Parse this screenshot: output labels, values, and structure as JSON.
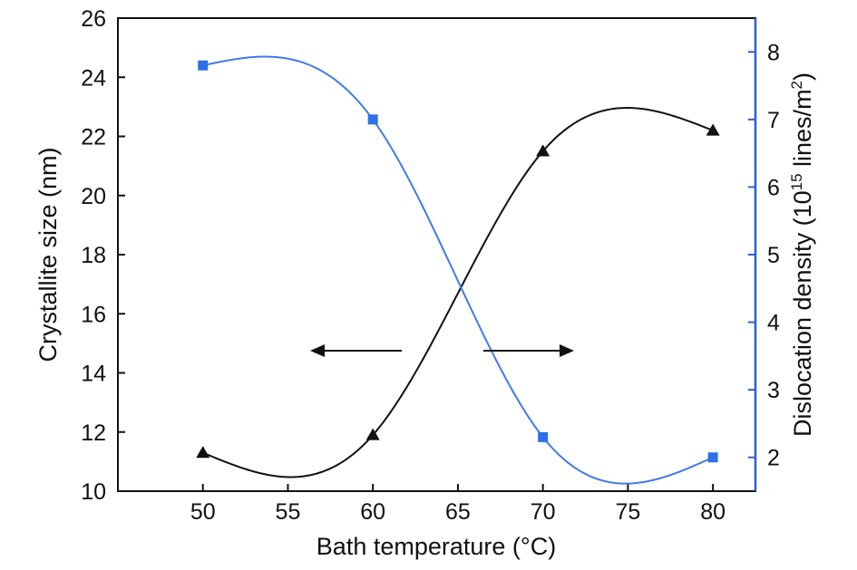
{
  "chart_data": {
    "type": "line",
    "title": "",
    "x": [
      50,
      60,
      70,
      80
    ],
    "xlabel": "Bath temperature (°C)",
    "xlim": [
      45,
      82.5
    ],
    "xticks": [
      50,
      55,
      60,
      65,
      70,
      75,
      80
    ],
    "y_left": {
      "label": "Crystallite size (nm)",
      "lim": [
        10,
        26
      ],
      "ticks": [
        10,
        12,
        14,
        16,
        18,
        20,
        22,
        24,
        26
      ],
      "color": "#111111"
    },
    "y_right": {
      "label_prefix": "Dislocation density (10",
      "label_exp": "15",
      "label_unit": " lines/m",
      "label_unit_exp": "2",
      "label_suffix": ")",
      "lim": [
        1.5,
        8.5
      ],
      "ticks": [
        2,
        3,
        4,
        5,
        6,
        7,
        8
      ],
      "color": "#2a5fd6"
    },
    "series": [
      {
        "axis": "left",
        "marker": "triangle",
        "color": "#111111",
        "values": [
          11.3,
          11.9,
          21.5,
          22.2
        ]
      },
      {
        "axis": "right",
        "marker": "square",
        "color": "#2f6fe8",
        "line_color": "#3f7be8",
        "values": [
          7.8,
          7.0,
          2.3,
          2.0
        ]
      }
    ],
    "annotations": [
      {
        "type": "arrow",
        "direction": "left",
        "points_to": "left axis"
      },
      {
        "type": "arrow",
        "direction": "right",
        "points_to": "right axis"
      }
    ],
    "grid": false,
    "legend": "none"
  }
}
